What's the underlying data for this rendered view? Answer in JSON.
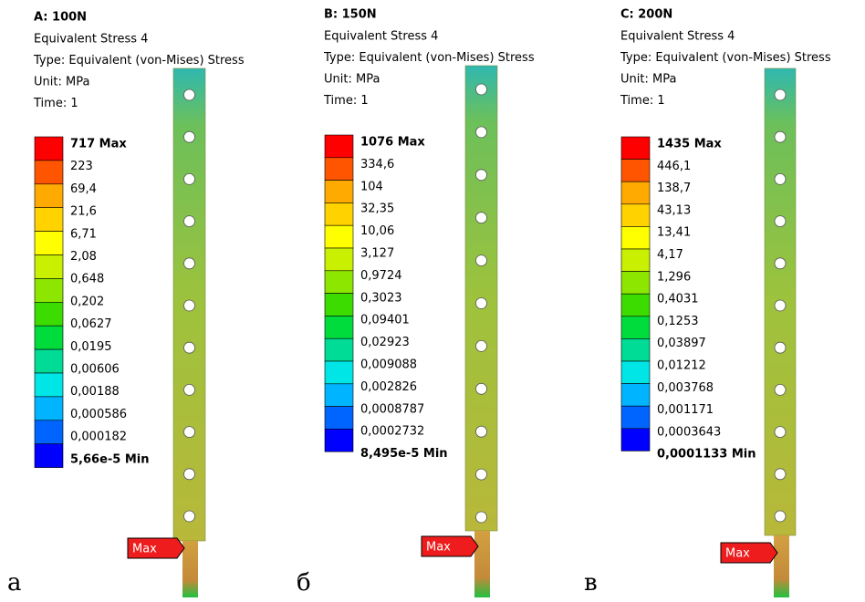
{
  "panels": [
    {
      "title": "A: 100N",
      "lines": [
        "Equivalent Stress 4",
        "Type: Equivalent (von-Mises) Stress",
        "Unit: MPa",
        "Time: 1"
      ],
      "legend": [
        "717 Max",
        "223",
        "69,4",
        "21,6",
        "6,71",
        "2,08",
        "0,648",
        "0,202",
        "0,0627",
        "0,0195",
        "0,00606",
        "0,00188",
        "0,000586",
        "0,000182",
        "5,66e-5 Min"
      ],
      "max_tag": "Max",
      "caption": "а"
    },
    {
      "title": "B: 150N",
      "lines": [
        "Equivalent Stress 4",
        "Type: Equivalent (von-Mises) Stress",
        "Unit: MPa",
        "Time: 1"
      ],
      "legend": [
        "1076 Max",
        "334,6",
        "104",
        "32,35",
        "10,06",
        "3,127",
        "0,9724",
        "0,3023",
        "0,09401",
        "0,02923",
        "0,009088",
        "0,002826",
        "0,0008787",
        "0,0002732",
        "8,495e-5 Min"
      ],
      "max_tag": "Max",
      "caption": "б"
    },
    {
      "title": "C: 200N",
      "lines": [
        "Equivalent Stress 4",
        "Type: Equivalent (von-Mises) Stress",
        "Unit: MPa",
        "Time: 1"
      ],
      "legend": [
        "1435 Max",
        "446,1",
        "138,7",
        "43,13",
        "13,41",
        "4,17",
        "1,296",
        "0,4031",
        "0,1253",
        "0,03897",
        "0,01212",
        "0,003768",
        "0,001171",
        "0,0003643",
        "0,0001133 Min"
      ],
      "max_tag": "Max",
      "caption": "в"
    }
  ]
}
